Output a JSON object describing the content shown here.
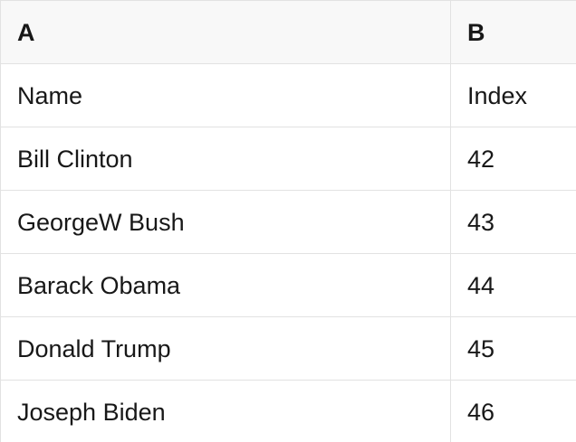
{
  "table": {
    "column_headers": [
      "A",
      "B"
    ],
    "rows": [
      [
        "Name",
        "Index"
      ],
      [
        "Bill Clinton",
        "42"
      ],
      [
        "GeorgeW Bush",
        "43"
      ],
      [
        "Barack Obama",
        "44"
      ],
      [
        "Donald Trump",
        "45"
      ],
      [
        "Joseph Biden",
        "46"
      ]
    ]
  },
  "colors": {
    "header_background": "#f8f8f8",
    "row_background": "#ffffff",
    "grid_border": "#e2e2e2",
    "text": "#181818"
  }
}
